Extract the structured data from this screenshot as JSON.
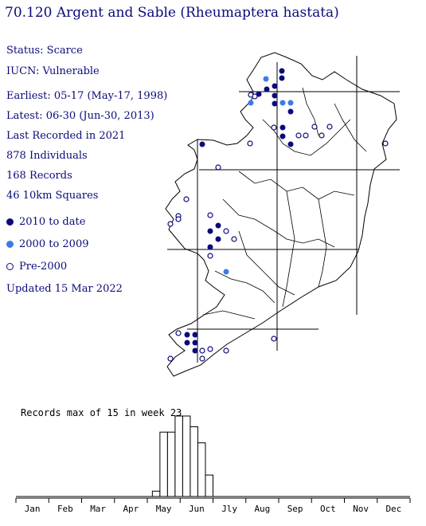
{
  "title": "70.120 Argent and Sable (Rheumaptera hastata)",
  "info": {
    "status": "Status: Scarce",
    "iucn": "IUCN: Vulnerable",
    "earliest": "Earliest: 05-17 (May-17, 1998)",
    "latest": "Latest: 06-30 (Jun-30, 2013)",
    "last_recorded": "Last Recorded in 2021",
    "individuals": "878 Individuals",
    "records": "168 Records",
    "squares": "46 10km Squares",
    "updated": "Updated 15 Mar 2022"
  },
  "legend": [
    {
      "label": "2010 to date",
      "color": "#0a0a7a",
      "style": "filled"
    },
    {
      "label": "2000 to 2009",
      "color": "#3d7be6",
      "style": "filled"
    },
    {
      "label": "Pre-2000",
      "color": "#0a0a7a",
      "style": "open"
    }
  ],
  "map_icon": "ireland-outline-map",
  "chart_data": {
    "type": "bar",
    "title": "Records max of 15 in week 23",
    "x_unit": "week",
    "months": [
      "Jan",
      "Feb",
      "Mar",
      "Apr",
      "May",
      "Jun",
      "Jly",
      "Aug",
      "Sep",
      "Oct",
      "Nov",
      "Dec"
    ],
    "weeks": [
      19,
      20,
      21,
      22,
      23,
      24,
      25,
      26
    ],
    "values": [
      1,
      12,
      12,
      15,
      15,
      13,
      10,
      4
    ],
    "ylim": [
      0,
      15
    ],
    "bar_color": "#ffffff",
    "bar_stroke": "#000000"
  }
}
